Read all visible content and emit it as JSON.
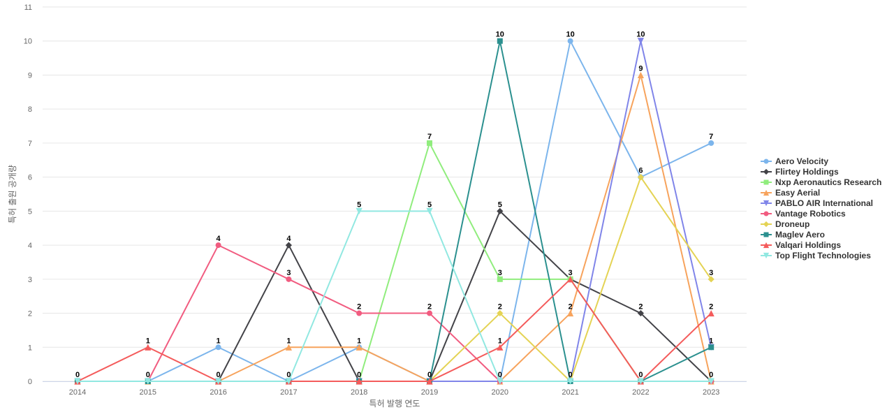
{
  "chart_data": {
    "type": "line",
    "xlabel": "특허 발행 연도",
    "ylabel": "특허 출원 공개량",
    "x": [
      "2014",
      "2015",
      "2016",
      "2017",
      "2018",
      "2019",
      "2020",
      "2021",
      "2022",
      "2023"
    ],
    "ylim": [
      0,
      11
    ],
    "yticks": [
      0,
      1,
      2,
      3,
      4,
      5,
      6,
      7,
      8,
      9,
      10,
      11
    ],
    "grid": true,
    "legend_position": "right",
    "series": [
      {
        "name": "Aero Velocity",
        "color": "#7cb5ec",
        "marker": "circle",
        "values": [
          0,
          0,
          1,
          0,
          1,
          0,
          0,
          10,
          6,
          7
        ]
      },
      {
        "name": "Flirtey Holdings",
        "color": "#434348",
        "marker": "diamond",
        "values": [
          0,
          0,
          0,
          4,
          0,
          0,
          5,
          3,
          2,
          0
        ]
      },
      {
        "name": "Nxp Aeronautics Research",
        "color": "#90ed7d",
        "marker": "square",
        "values": [
          0,
          0,
          0,
          0,
          0,
          7,
          3,
          3,
          0,
          0
        ]
      },
      {
        "name": "Easy Aerial",
        "color": "#f7a35c",
        "marker": "triangle",
        "values": [
          0,
          0,
          0,
          1,
          1,
          0,
          0,
          2,
          9,
          0
        ]
      },
      {
        "name": "PABLO AIR International",
        "color": "#8085e9",
        "marker": "triangle-down",
        "values": [
          0,
          0,
          0,
          0,
          0,
          0,
          0,
          0,
          10,
          1
        ]
      },
      {
        "name": "Vantage Robotics",
        "color": "#f15c80",
        "marker": "circle",
        "values": [
          0,
          0,
          4,
          3,
          2,
          2,
          0,
          0,
          0,
          0
        ]
      },
      {
        "name": "Droneup",
        "color": "#e4d354",
        "marker": "diamond",
        "values": [
          0,
          0,
          0,
          0,
          0,
          0,
          2,
          0,
          6,
          3
        ]
      },
      {
        "name": "Maglev Aero",
        "color": "#2b908f",
        "marker": "square",
        "values": [
          0,
          0,
          0,
          0,
          0,
          0,
          10,
          0,
          0,
          1
        ]
      },
      {
        "name": "Valqari Holdings",
        "color": "#f45b5b",
        "marker": "triangle",
        "values": [
          0,
          1,
          0,
          0,
          0,
          0,
          1,
          3,
          0,
          2
        ]
      },
      {
        "name": "Top Flight Technologies",
        "color": "#91e8e1",
        "marker": "triangle-down",
        "values": [
          0,
          0,
          0,
          0,
          5,
          5,
          0,
          0,
          0,
          0
        ]
      }
    ],
    "data_labels": [
      {
        "x": "2014",
        "text": "0",
        "value": 0
      },
      {
        "x": "2015",
        "text": "1",
        "value": 1
      },
      {
        "x": "2015",
        "text": "0",
        "value": 0
      },
      {
        "x": "2016",
        "text": "4",
        "value": 4
      },
      {
        "x": "2016",
        "text": "1",
        "value": 1
      },
      {
        "x": "2016",
        "text": "0",
        "value": 0
      },
      {
        "x": "2017",
        "text": "4",
        "value": 4
      },
      {
        "x": "2017",
        "text": "3",
        "value": 3
      },
      {
        "x": "2017",
        "text": "1",
        "value": 1
      },
      {
        "x": "2017",
        "text": "0",
        "value": 0
      },
      {
        "x": "2018",
        "text": "5",
        "value": 5
      },
      {
        "x": "2018",
        "text": "2",
        "value": 2
      },
      {
        "x": "2018",
        "text": "1",
        "value": 1
      },
      {
        "x": "2018",
        "text": "0",
        "value": 0
      },
      {
        "x": "2019",
        "text": "7",
        "value": 7
      },
      {
        "x": "2019",
        "text": "5",
        "value": 5
      },
      {
        "x": "2019",
        "text": "2",
        "value": 2
      },
      {
        "x": "2019",
        "text": "0",
        "value": 0
      },
      {
        "x": "2020",
        "text": "10",
        "value": 10
      },
      {
        "x": "2020",
        "text": "5",
        "value": 5
      },
      {
        "x": "2020",
        "text": "3",
        "value": 3
      },
      {
        "x": "2020",
        "text": "2",
        "value": 2
      },
      {
        "x": "2020",
        "text": "1",
        "value": 1
      },
      {
        "x": "2020",
        "text": "0",
        "value": 0
      },
      {
        "x": "2021",
        "text": "10",
        "value": 10
      },
      {
        "x": "2021",
        "text": "3",
        "value": 3
      },
      {
        "x": "2021",
        "text": "2",
        "value": 2
      },
      {
        "x": "2021",
        "text": "0",
        "value": 0
      },
      {
        "x": "2022",
        "text": "10",
        "value": 10
      },
      {
        "x": "2022",
        "text": "9",
        "value": 9
      },
      {
        "x": "2022",
        "text": "6",
        "value": 6
      },
      {
        "x": "2022",
        "text": "2",
        "value": 2
      },
      {
        "x": "2022",
        "text": "0",
        "value": 0
      },
      {
        "x": "2023",
        "text": "7",
        "value": 7
      },
      {
        "x": "2023",
        "text": "3",
        "value": 3
      },
      {
        "x": "2023",
        "text": "2",
        "value": 2
      },
      {
        "x": "2023",
        "text": "1",
        "value": 1
      },
      {
        "x": "2023",
        "text": "0",
        "value": 0
      }
    ]
  }
}
